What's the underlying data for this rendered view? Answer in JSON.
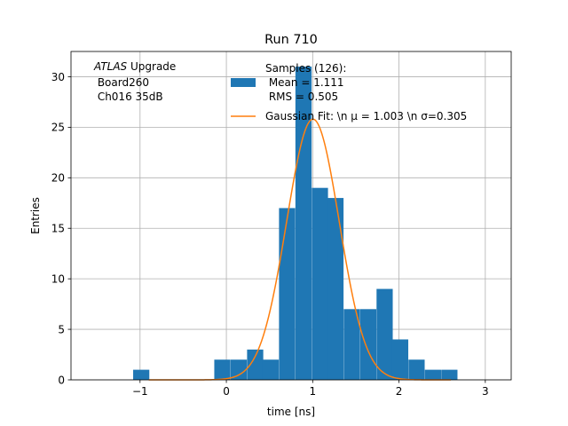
{
  "chart_data": {
    "type": "bar",
    "title": "Run 710",
    "xlabel": "time [ns]",
    "ylabel": "Entries",
    "xlim": [
      -1.8,
      3.3
    ],
    "ylim": [
      0,
      32.5
    ],
    "xticks": [
      -1,
      0,
      1,
      2,
      3
    ],
    "yticks": [
      0,
      5,
      10,
      15,
      20,
      25,
      30
    ],
    "grid": true,
    "bin_width": 0.1875,
    "bins": [
      {
        "left": -1.08,
        "count": 1
      },
      {
        "left": -0.14,
        "count": 2
      },
      {
        "left": 0.05,
        "count": 2
      },
      {
        "left": 0.24,
        "count": 3
      },
      {
        "left": 0.42,
        "count": 2
      },
      {
        "left": 0.61,
        "count": 17
      },
      {
        "left": 0.8,
        "count": 31
      },
      {
        "left": 0.99,
        "count": 19
      },
      {
        "left": 1.17,
        "count": 18
      },
      {
        "left": 1.36,
        "count": 7
      },
      {
        "left": 1.55,
        "count": 7
      },
      {
        "left": 1.74,
        "count": 9
      },
      {
        "left": 1.92,
        "count": 4
      },
      {
        "left": 2.11,
        "count": 2
      },
      {
        "left": 2.3,
        "count": 1
      },
      {
        "left": 2.49,
        "count": 1
      }
    ],
    "fit": {
      "mu": 1.003,
      "sigma": 0.305,
      "amplitude": 25.8,
      "x_range": [
        -0.9,
        2.6
      ]
    },
    "colors": {
      "bars": "#1f77b4",
      "fit": "#ff7f0e",
      "grid": "#b0b0b0"
    },
    "legend": {
      "placement": "top-right",
      "entries": [
        {
          "type": "bar",
          "lines": [
            "Samples (126):",
            " Mean = 1.111",
            " RMS = 0.505"
          ]
        },
        {
          "type": "line",
          "lines": [
            "Gaussian Fit: \\n μ = 1.003 \\n σ=0.305"
          ]
        }
      ]
    },
    "annotation": {
      "italic": "ATLAS",
      "first_line_rest": " Upgrade",
      "lines": [
        " Board260",
        " Ch016 35dB"
      ]
    }
  }
}
